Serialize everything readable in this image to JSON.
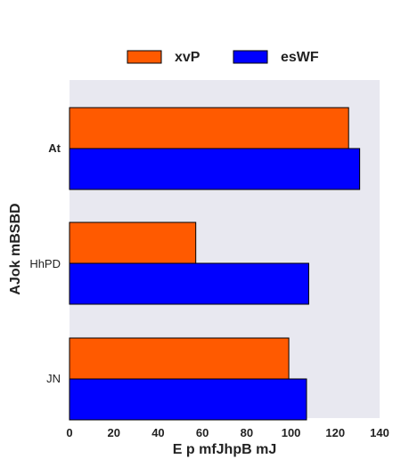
{
  "chart_data": {
    "type": "bar",
    "orientation": "horizontal",
    "categories": [
      "At",
      "HhPD",
      "JN"
    ],
    "series": [
      {
        "name": "xvP",
        "color": "#ff5a00",
        "values": [
          126,
          57,
          99
        ]
      },
      {
        "name": "esWF",
        "color": "#0000ff",
        "values": [
          131,
          108,
          107
        ]
      }
    ],
    "xlabel": "E p mfJhpB mJ",
    "ylabel": "AJok mBSBD",
    "xlim": [
      0,
      140
    ],
    "xticks": [
      "0",
      "20",
      "40",
      "60",
      "80",
      "100",
      "120",
      "140"
    ],
    "grid": false,
    "legend_position": "top-center",
    "plot_background": "#e8e8f0"
  }
}
